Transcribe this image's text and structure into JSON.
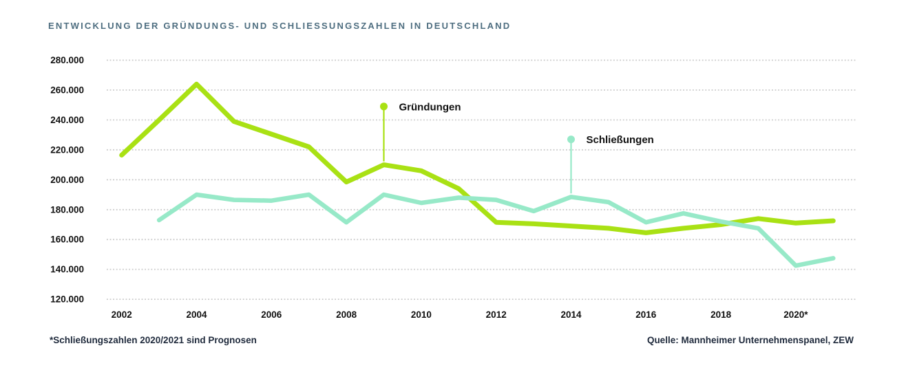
{
  "title": "ENTWICKLUNG DER GRÜNDUNGS- UND SCHLIESSUNGSZAHLEN IN DEUTSCHLAND",
  "footnote": "*Schließungszahlen 2020/2021 sind Prognosen",
  "source": "Quelle: Mannheimer Unternehmenspanel, ZEW",
  "colors": {
    "gruendungen": "#a9e114",
    "schliessungen": "#97e9c8",
    "title": "#4e6e80",
    "footer_text": "#1f2a3c",
    "axis_text": "#101010",
    "grid": "#c9c9c9",
    "background": "#ffffff"
  },
  "chart_data": {
    "type": "line",
    "title": "ENTWICKLUNG DER GRÜNDUNGS- UND SCHLIESSUNGSZAHLEN IN DEUTSCHLAND",
    "xlabel": "",
    "ylabel": "",
    "grid": "horizontal-dotted",
    "legend_position": "inline-callouts",
    "ylim": [
      120000,
      280000
    ],
    "x": [
      2002,
      2003,
      2004,
      2005,
      2006,
      2007,
      2008,
      2009,
      2010,
      2011,
      2012,
      2013,
      2014,
      2015,
      2016,
      2017,
      2018,
      2019,
      2020,
      2021
    ],
    "x_tick_labels": [
      {
        "year": 2002,
        "label": "2002"
      },
      {
        "year": 2004,
        "label": "2004"
      },
      {
        "year": 2006,
        "label": "2006"
      },
      {
        "year": 2008,
        "label": "2008"
      },
      {
        "year": 2010,
        "label": "2010"
      },
      {
        "year": 2012,
        "label": "2012"
      },
      {
        "year": 2014,
        "label": "2014"
      },
      {
        "year": 2016,
        "label": "2016"
      },
      {
        "year": 2018,
        "label": "2018"
      },
      {
        "year": 2020,
        "label": "2020*"
      }
    ],
    "y_ticks": [
      {
        "value": 280000,
        "label": "280.000"
      },
      {
        "value": 260000,
        "label": "260.000"
      },
      {
        "value": 240000,
        "label": "240.000"
      },
      {
        "value": 220000,
        "label": "220.000"
      },
      {
        "value": 200000,
        "label": "200.000"
      },
      {
        "value": 180000,
        "label": "180.000"
      },
      {
        "value": 160000,
        "label": "160.000"
      },
      {
        "value": 140000,
        "label": "140.000"
      },
      {
        "value": 120000,
        "label": "120.000"
      }
    ],
    "series": [
      {
        "name": "Gründungen",
        "color_key": "gruendungen",
        "values": [
          216500,
          240000,
          264000,
          239000,
          230500,
          222000,
          198500,
          210000,
          206000,
          194000,
          171500,
          170500,
          169000,
          167500,
          164500,
          167500,
          170000,
          174000,
          171000,
          172500
        ]
      },
      {
        "name": "Schließungen",
        "color_key": "schliessungen",
        "values": [
          null,
          173000,
          190000,
          186500,
          186000,
          190000,
          171500,
          190000,
          184500,
          188000,
          186500,
          179000,
          188500,
          185000,
          171500,
          177500,
          172000,
          167500,
          142500,
          147500
        ]
      }
    ],
    "legend": [
      {
        "label": "Gründungen",
        "series": 0,
        "anchor_year": 2009,
        "dot_value": 249000
      },
      {
        "label": "Schließungen",
        "series": 1,
        "anchor_year": 2014,
        "dot_value": 227000
      }
    ]
  }
}
